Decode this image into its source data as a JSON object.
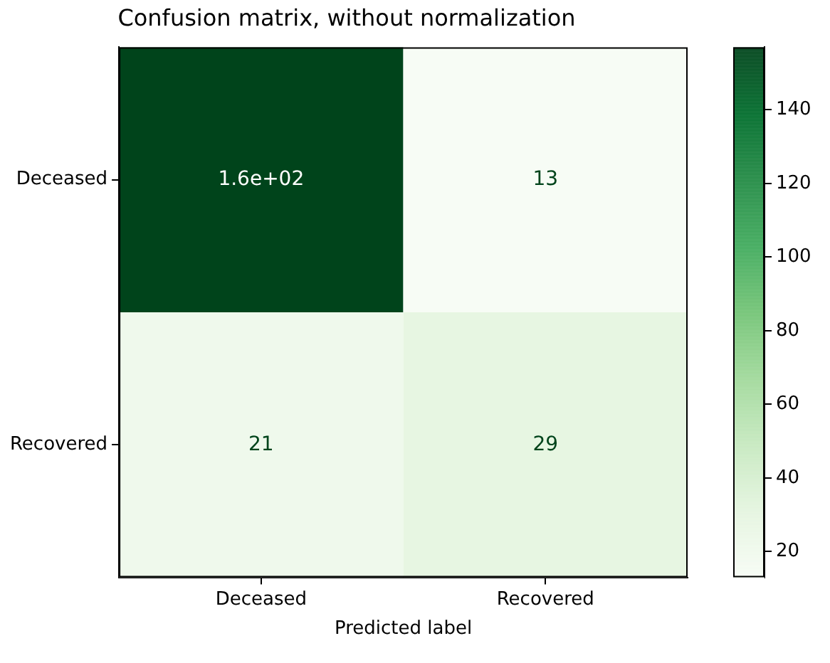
{
  "chart_data": {
    "type": "heatmap",
    "title": "Confusion matrix, without normalization",
    "xlabel": "Predicted label",
    "categories": [
      "Deceased",
      "Recovered"
    ],
    "y_categories": [
      "Deceased",
      "Recovered"
    ],
    "cells": [
      [
        157,
        13
      ],
      [
        21,
        29
      ]
    ],
    "cell_labels": [
      [
        "1.6e+02",
        "13"
      ],
      [
        "21",
        "29"
      ]
    ],
    "clim": [
      13,
      157
    ],
    "cticks": [
      20,
      40,
      60,
      80,
      100,
      120,
      140
    ]
  }
}
